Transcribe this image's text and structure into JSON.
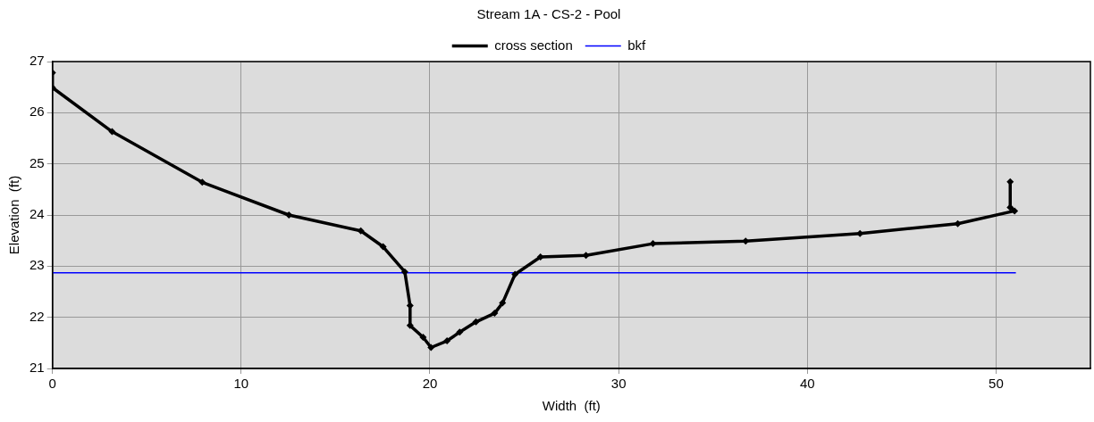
{
  "chart_data": {
    "type": "line",
    "title": "Stream 1A - CS-2 - Pool",
    "xlabel": "Width  (ft)",
    "ylabel": "Elevation  (ft)",
    "xlim": [
      0,
      55
    ],
    "xticks": [
      0,
      10,
      20,
      30,
      40,
      50
    ],
    "ylim": [
      21,
      27
    ],
    "yticks": [
      21,
      22,
      23,
      24,
      25,
      26,
      27
    ],
    "grid": true,
    "legend": "top",
    "series": [
      {
        "name": "cross section",
        "color": "#000000",
        "marker": "diamond",
        "line_style": "solid",
        "x": [
          0,
          0,
          3.16,
          7.94,
          12.53,
          16.34,
          17.52,
          18.67,
          18.95,
          18.95,
          19.64,
          20.06,
          20.91,
          21.58,
          22.44,
          23.43,
          23.85,
          24.51,
          25.86,
          28.27,
          31.82,
          36.73,
          42.79,
          47.97,
          50.98,
          50.75,
          50.75
        ],
        "values": [
          26.78,
          26.49,
          25.63,
          24.64,
          24.0,
          23.69,
          23.38,
          22.89,
          22.23,
          21.84,
          21.61,
          21.41,
          21.54,
          21.71,
          21.91,
          22.08,
          22.28,
          22.84,
          23.18,
          23.21,
          23.44,
          23.49,
          23.64,
          23.83,
          24.08,
          24.15,
          24.65
        ]
      },
      {
        "name": "bkf",
        "color": "#0000ff",
        "marker": "none",
        "line_style": "solid",
        "x": [
          0,
          51.05
        ],
        "values": [
          22.87,
          22.87
        ]
      }
    ]
  }
}
